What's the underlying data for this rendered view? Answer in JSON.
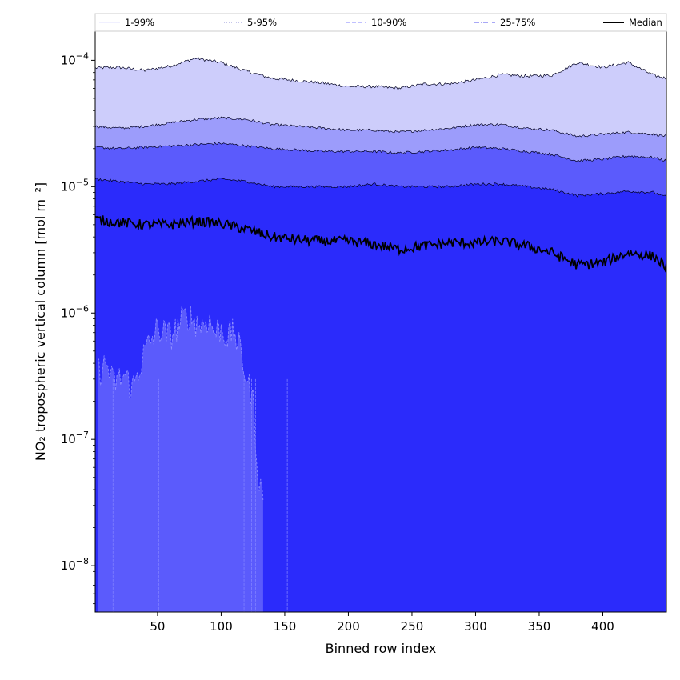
{
  "chart_data": {
    "type": "area",
    "title": "",
    "xlabel": "Binned row index",
    "ylabel": "NO₂ tropospheric vertical column [mol m⁻²]",
    "y_scale": "log",
    "xlim": [
      1,
      450
    ],
    "ylim": [
      4.3e-09,
      0.00017
    ],
    "x_ticks": [
      50,
      100,
      150,
      200,
      250,
      300,
      350,
      400
    ],
    "y_ticks": [
      {
        "base": "10",
        "exp": "−8",
        "value": 1e-08
      },
      {
        "base": "10",
        "exp": "−7",
        "value": 1e-07
      },
      {
        "base": "10",
        "exp": "−6",
        "value": 1e-06
      },
      {
        "base": "10",
        "exp": "−5",
        "value": 1e-05
      },
      {
        "base": "10",
        "exp": "−4",
        "value": 0.0001
      }
    ],
    "grid": false,
    "legend_position": "top",
    "x_anchor": [
      1,
      20,
      40,
      60,
      80,
      100,
      120,
      140,
      160,
      180,
      200,
      220,
      240,
      260,
      280,
      300,
      320,
      340,
      360,
      380,
      400,
      420,
      440,
      450
    ],
    "bands": [
      {
        "label": "1-99%",
        "color": "#cdcdfb",
        "line_color": "#e2e2ff",
        "line_style": "solid",
        "lower_note": "lower bound near zero across most rows",
        "upper": [
          8.7e-05,
          8.8e-05,
          8.3e-05,
          9e-05,
          0.000104,
          9.6e-05,
          8.2e-05,
          7.2e-05,
          6.9e-05,
          6.6e-05,
          6.2e-05,
          6.2e-05,
          6e-05,
          6.5e-05,
          6.5e-05,
          7e-05,
          7.7e-05,
          7.5e-05,
          7.6e-05,
          9.6e-05,
          8.8e-05,
          9.6e-05,
          7.6e-05,
          7.2e-05
        ]
      },
      {
        "label": "5-95%",
        "color": "#9c9cfb",
        "line_color": "#8a8ad6",
        "line_style": "dotted",
        "upper": [
          3e-05,
          2.9e-05,
          3e-05,
          3.2e-05,
          3.4e-05,
          3.5e-05,
          3.4e-05,
          3.1e-05,
          3e-05,
          2.9e-05,
          2.8e-05,
          2.8e-05,
          2.7e-05,
          2.8e-05,
          2.9e-05,
          3.1e-05,
          3.1e-05,
          2.9e-05,
          2.8e-05,
          2.5e-05,
          2.6e-05,
          2.7e-05,
          2.6e-05,
          2.5e-05
        ]
      },
      {
        "label": "10-90%",
        "color": "#5b5bfc",
        "line_color": "#8080ff",
        "line_style": "dashed",
        "upper": [
          2.05e-05,
          2e-05,
          2.05e-05,
          2.1e-05,
          2.15e-05,
          2.2e-05,
          2.1e-05,
          2e-05,
          1.95e-05,
          1.9e-05,
          1.9e-05,
          1.9e-05,
          1.85e-05,
          1.9e-05,
          1.95e-05,
          2.05e-05,
          2e-05,
          1.9e-05,
          1.8e-05,
          1.6e-05,
          1.65e-05,
          1.75e-05,
          1.7e-05,
          1.6e-05
        ]
      },
      {
        "label": "25-75%",
        "color": "#2b2bfb",
        "line_color": "#5050ee",
        "line_style": "dashdot",
        "upper": [
          1.15e-05,
          1.1e-05,
          1.05e-05,
          1.05e-05,
          1.1e-05,
          1.15e-05,
          1.1e-05,
          1e-05,
          1e-05,
          1e-05,
          1e-05,
          1.05e-05,
          1e-05,
          1e-05,
          1e-05,
          1.05e-05,
          1.05e-05,
          1e-05,
          9.5e-06,
          8.5e-06,
          8.8e-06,
          9.2e-06,
          9e-06,
          8.3e-06
        ]
      }
    ],
    "median": {
      "label": "Median",
      "color": "#000000",
      "values": [
        5.5e-06,
        5.2e-06,
        5e-06,
        5e-06,
        5.3e-06,
        5.1e-06,
        4.6e-06,
        4e-06,
        3.8e-06,
        3.7e-06,
        3.7e-06,
        3.5e-06,
        3.2e-06,
        3.4e-06,
        3.6e-06,
        3.6e-06,
        3.7e-06,
        3.4e-06,
        3e-06,
        2.4e-06,
        2.5e-06,
        3e-06,
        2.8e-06,
        2.3e-06
      ]
    },
    "lower_tail_x_anchor": [
      5,
      10,
      15,
      20,
      25,
      30,
      35,
      40,
      45,
      50,
      55,
      60,
      65,
      70,
      75,
      80,
      85,
      90,
      95,
      100,
      105,
      110,
      115,
      120,
      125,
      130
    ],
    "lower_tail_10pct": [
      3.5e-07,
      4e-07,
      2.8e-07,
      3e-07,
      3.2e-07,
      2.5e-07,
      3.5e-07,
      5e-07,
      6e-07,
      7.5e-07,
      7e-07,
      6.5e-07,
      7.5e-07,
      9e-07,
      9.5e-07,
      8.5e-07,
      8e-07,
      9e-07,
      7e-07,
      7.5e-07,
      6.5e-07,
      7e-07,
      5e-07,
      3e-07,
      2e-07,
      4e-08
    ]
  }
}
